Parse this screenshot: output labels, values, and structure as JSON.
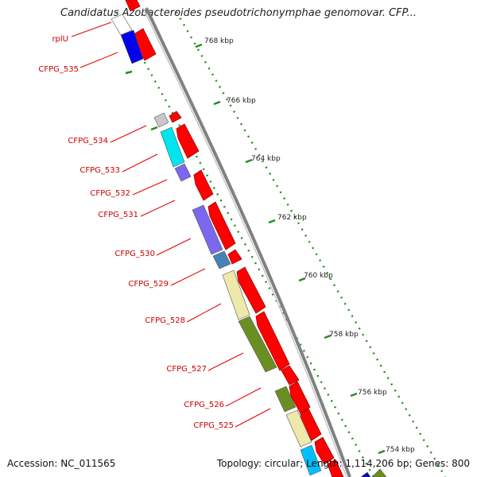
{
  "title": "Candidatus Azobacteroides pseudotrichonymphae genomovar. CFP...",
  "footer": {
    "accession": "Accession: NC_011565",
    "topology": "Topology: circular; Length: 1,114,206 bp; Genes: 800"
  },
  "colors": {
    "forward_gene": "#ff0000",
    "axis_line": "#808080",
    "tick_dots": "#228b22",
    "label_text": "#cc0000",
    "leader_line": "#e00000"
  },
  "scale_labels": [
    "768 kbp",
    "766 kbp",
    "764 kbp",
    "762 kbp",
    "760 kbp",
    "758 kbp",
    "756 kbp",
    "754 kbp"
  ],
  "gene_labels": [
    "rplU",
    "CFPG_535",
    "CFPG_534",
    "CFPG_533",
    "CFPG_532",
    "CFPG_531",
    "CFPG_530",
    "CFPG_529",
    "CFPG_528",
    "CFPG_527",
    "CFPG_526",
    "CFPG_525"
  ],
  "cog_block_colors": [
    "#ffffff",
    "#0000ee",
    "#c8c8c8",
    "#00e5ee",
    "#7b68ee",
    "#7b68ee",
    "#4682b4",
    "#eee8aa",
    "#6b8e23",
    "#6b8e23",
    "#eee8aa",
    "#00bfff",
    "#0000cd",
    "#6b8e23"
  ]
}
